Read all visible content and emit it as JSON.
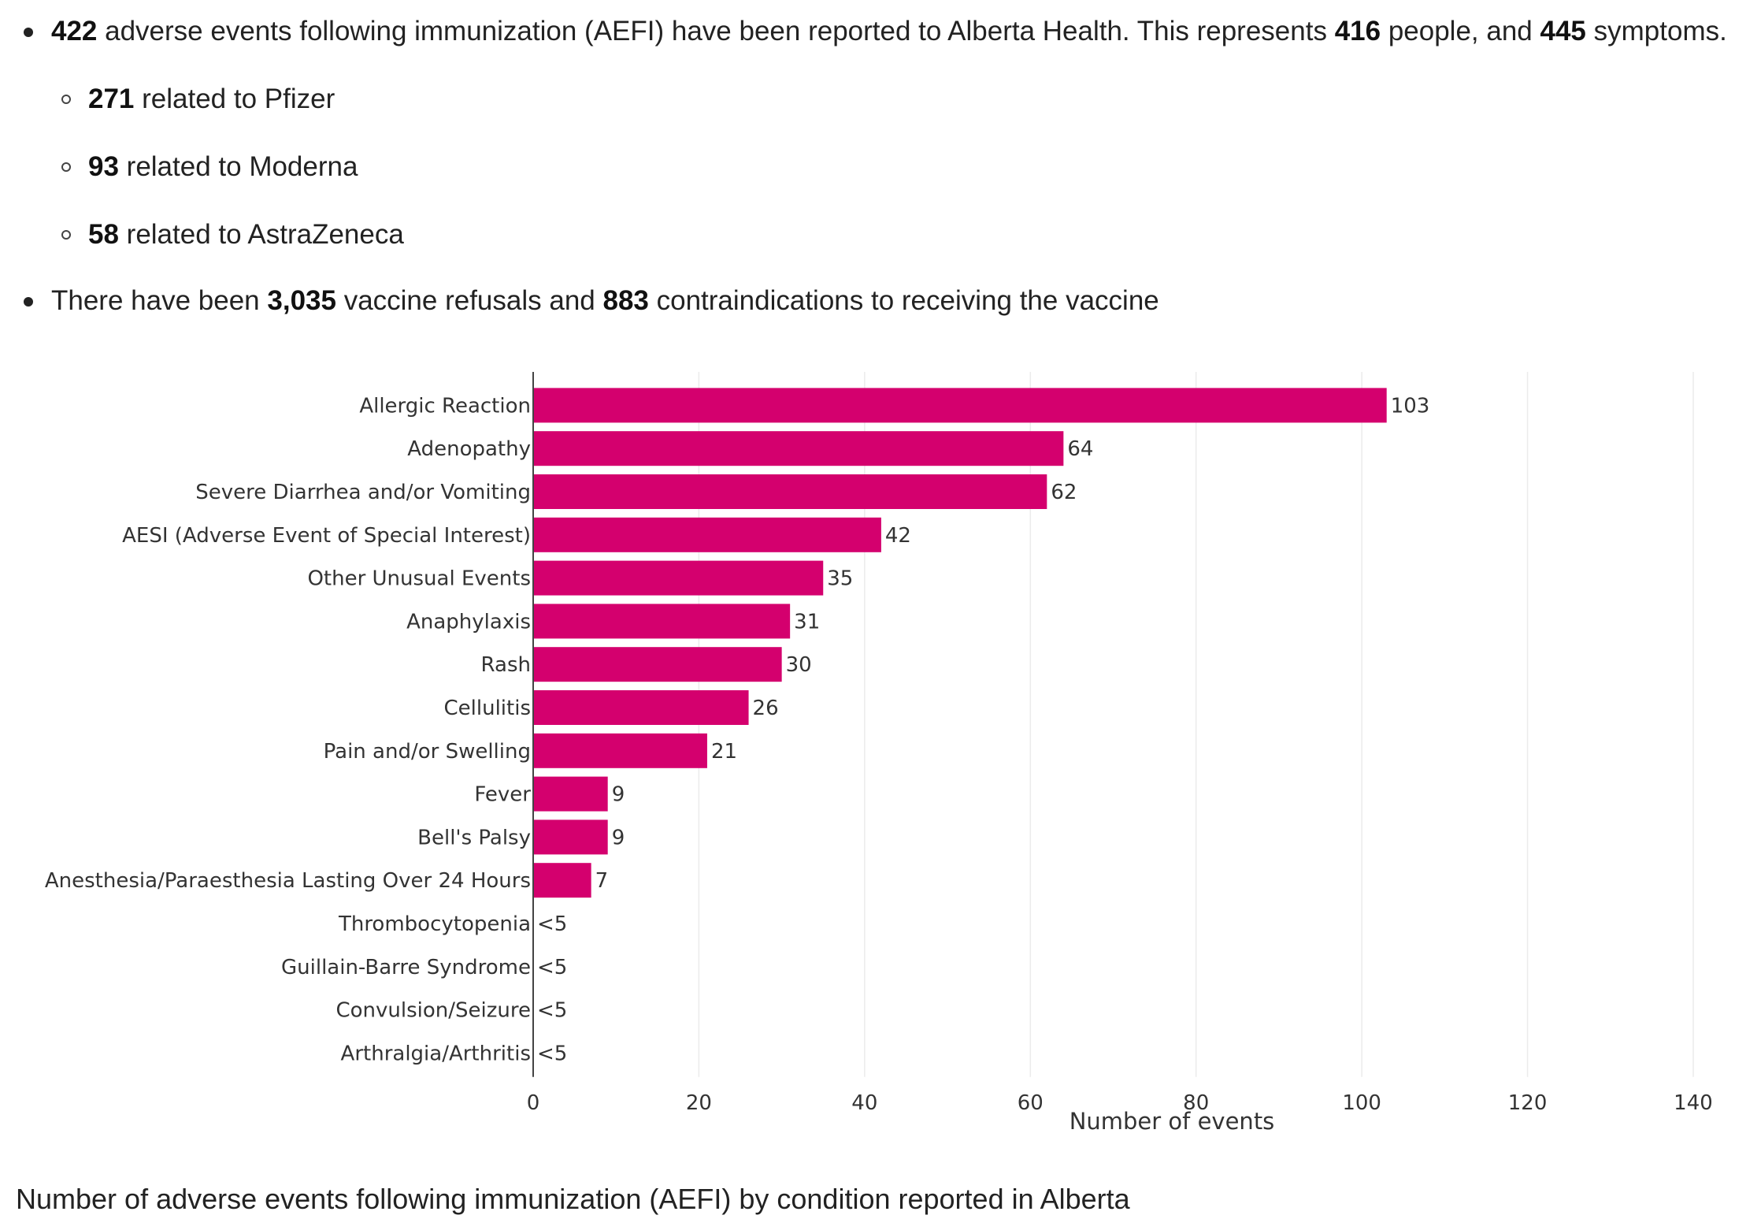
{
  "summary": {
    "line1": {
      "aefi_count": "422",
      "text_a": " adverse events following immunization (AEFI) have been reported to Alberta Health. This represents ",
      "people_count": "416",
      "text_b": " people, and ",
      "symptom_count": "445",
      "text_c": " symptoms."
    },
    "vaccines": [
      {
        "count": "271",
        "text": " related to Pfizer"
      },
      {
        "count": "93",
        "text": " related to Moderna"
      },
      {
        "count": "58",
        "text": " related to AstraZeneca"
      }
    ],
    "line2": {
      "text_a": "There have been ",
      "refusals": "3,035",
      "text_b": " vaccine refusals and ",
      "contraindications": "883",
      "text_c": " contraindications to receiving the vaccine"
    }
  },
  "chart_data": {
    "type": "bar",
    "orientation": "horizontal",
    "categories": [
      "Allergic Reaction",
      "Adenopathy",
      "Severe Diarrhea and/or Vomiting",
      "AESI (Adverse Event of Special Interest)",
      "Other Unusual Events",
      "Anaphylaxis",
      "Rash",
      "Cellulitis",
      "Pain and/or Swelling",
      "Fever",
      "Bell's Palsy",
      "Anesthesia/Paraesthesia Lasting Over 24 Hours",
      "Thrombocytopenia",
      "Guillain-Barre Syndrome",
      "Convulsion/Seizure",
      "Arthralgia/Arthritis"
    ],
    "values": [
      103,
      64,
      62,
      42,
      35,
      31,
      30,
      26,
      21,
      9,
      9,
      7,
      0,
      0,
      0,
      0
    ],
    "data_labels": [
      "103",
      "64",
      "62",
      "42",
      "35",
      "31",
      "30",
      "26",
      "21",
      "9",
      "9",
      "7",
      "<5",
      "<5",
      "<5",
      "<5"
    ],
    "xlabel": "Number of events",
    "xlim": [
      0,
      140
    ],
    "xticks": [
      0,
      20,
      40,
      60,
      80,
      100,
      120,
      140
    ],
    "grid": true,
    "bar_color": "#d4006e",
    "grid_color": "#ebebeb",
    "text_color": "#333333"
  },
  "caption": "Number of adverse events following immunization (AEFI) by condition reported in Alberta"
}
